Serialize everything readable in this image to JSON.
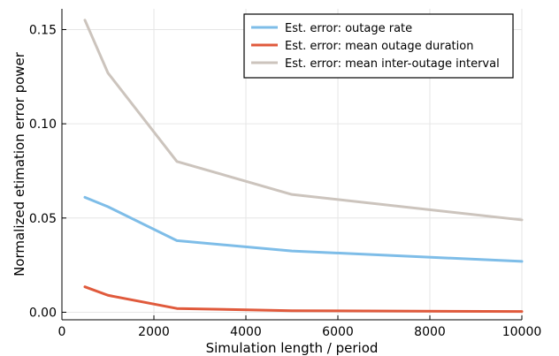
{
  "chart_data": {
    "type": "line",
    "title": "",
    "xlabel": "Simulation length / period",
    "ylabel": "Normalized etimation error power",
    "xlim": [
      0,
      10000
    ],
    "ylim": [
      -0.004,
      0.161
    ],
    "x_ticks": [
      0,
      2000,
      4000,
      6000,
      8000,
      10000
    ],
    "y_ticks": [
      0.0,
      0.05,
      0.1,
      0.15
    ],
    "y_tick_labels": [
      "0.00",
      "0.05",
      "0.10",
      "0.15"
    ],
    "x_tick_labels": [
      "0",
      "2000",
      "4000",
      "6000",
      "8000",
      "10000"
    ],
    "grid": true,
    "legend_position": "top-right",
    "x": [
      500,
      1000,
      2500,
      5000,
      10000
    ],
    "series": [
      {
        "name": "Est. error: outage rate",
        "color": "#7ebde8",
        "values": [
          0.061,
          0.056,
          0.038,
          0.0325,
          0.027
        ]
      },
      {
        "name": "Est. error: mean outage duration",
        "color": "#e05a3c",
        "values": [
          0.0135,
          0.009,
          0.002,
          0.0008,
          0.0004
        ]
      },
      {
        "name": "Est. error: mean inter-outage interval",
        "color": "#ccc4bd",
        "values": [
          0.155,
          0.127,
          0.08,
          0.0625,
          0.049
        ]
      }
    ]
  }
}
